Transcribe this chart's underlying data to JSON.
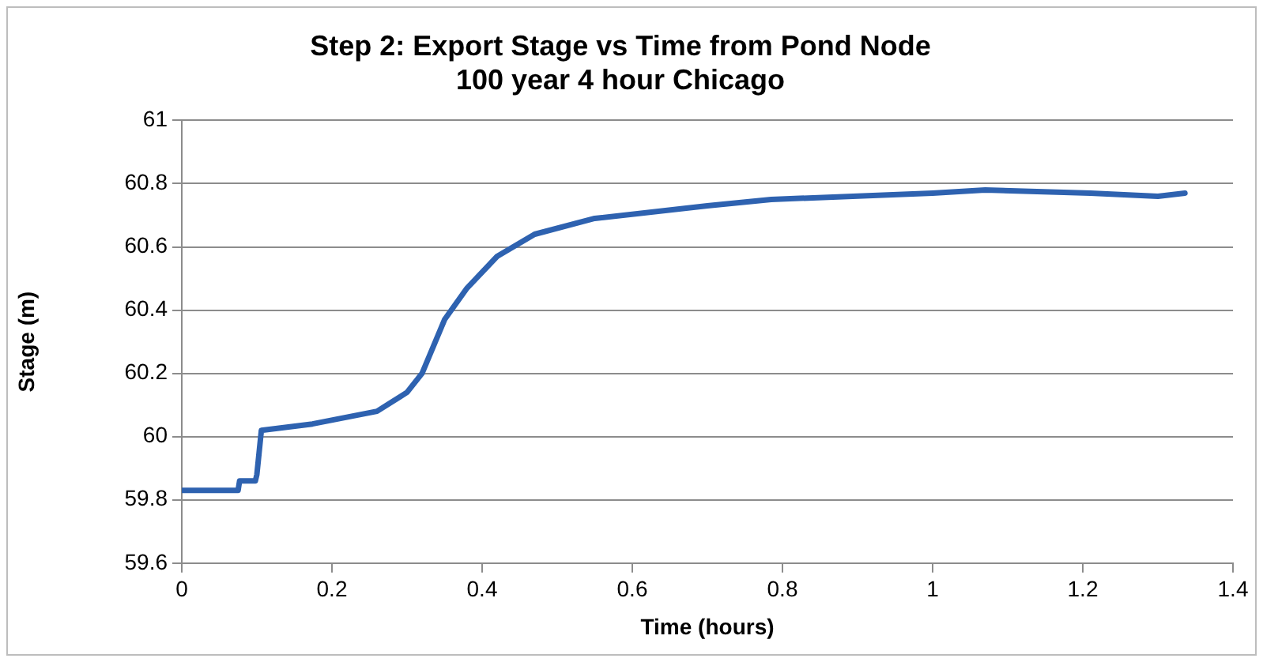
{
  "chart_data": {
    "type": "line",
    "title": [
      "Step 2: Export Stage vs Time from Pond Node",
      "100 year 4 hour Chicago"
    ],
    "xlabel": "Time (hours)",
    "ylabel": "Stage (m)",
    "xlim": [
      0,
      1.4
    ],
    "xticks": [
      0,
      0.2,
      0.4,
      0.6,
      0.8,
      1,
      1.2,
      1.4
    ],
    "ylim": [
      59.6,
      61
    ],
    "yticks": [
      59.6,
      59.8,
      60,
      60.2,
      60.4,
      60.6,
      60.8,
      61
    ],
    "grid": "y",
    "legend": false,
    "marker": "none",
    "line_style": "solid",
    "series": [
      {
        "color": "#2e62b0",
        "x": [
          0,
          0.075,
          0.077,
          0.098,
          0.1,
          0.106,
          0.174,
          0.26,
          0.3,
          0.32,
          0.35,
          0.38,
          0.42,
          0.47,
          0.55,
          0.7,
          0.785,
          1.0,
          1.07,
          1.21,
          1.3,
          1.336
        ],
        "values": [
          59.83,
          59.83,
          59.86,
          59.86,
          59.88,
          60.02,
          60.04,
          60.08,
          60.14,
          60.2,
          60.37,
          60.47,
          60.57,
          60.64,
          60.69,
          60.73,
          60.75,
          60.77,
          60.78,
          60.77,
          60.76,
          60.77
        ]
      }
    ]
  }
}
